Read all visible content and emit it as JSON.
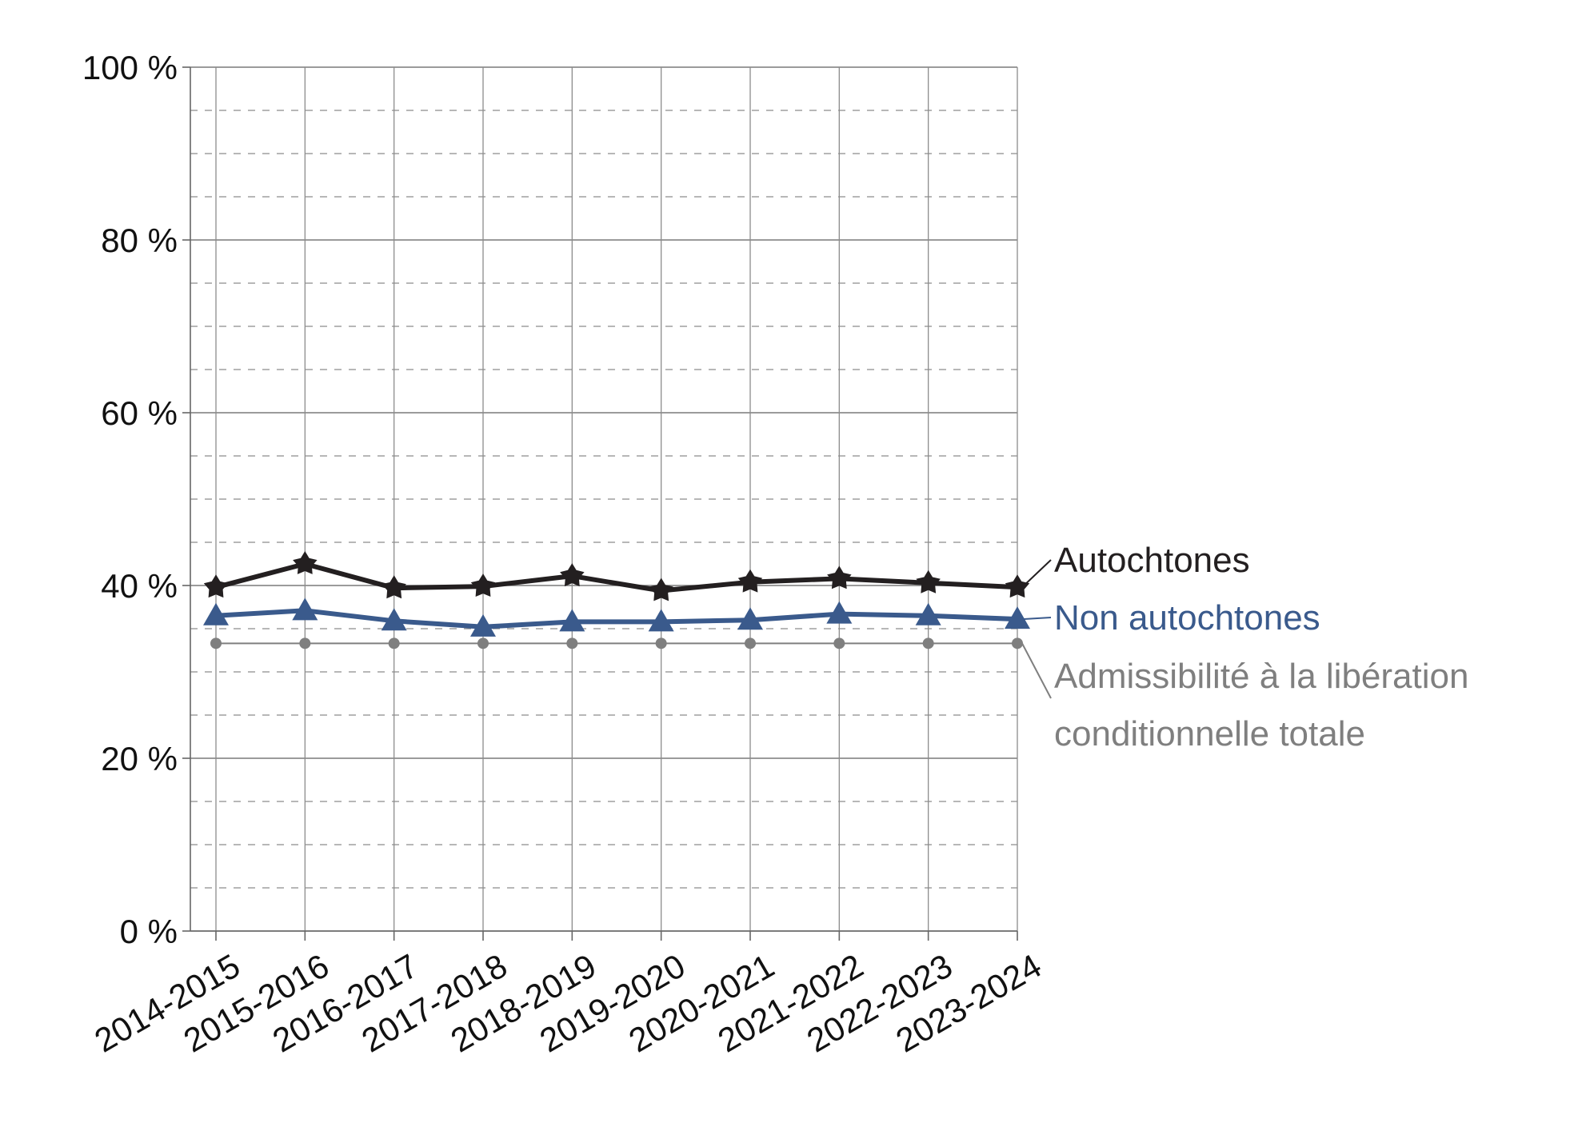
{
  "chart_data": {
    "type": "line",
    "title": "",
    "xlabel": "",
    "ylabel": "",
    "ylim": [
      0,
      100
    ],
    "yticks": [
      "0 %",
      "20 %",
      "40 %",
      "60 %",
      "80 %",
      "100 %"
    ],
    "ytick_values": [
      0,
      20,
      40,
      60,
      80,
      100
    ],
    "categories": [
      "2014-2015",
      "2015-2016",
      "2016-2017",
      "2017-2018",
      "2018-2019",
      "2019-2020",
      "2020-2021",
      "2021-2022",
      "2022-2023",
      "2023-2024"
    ],
    "grid": true,
    "legend": "direct labels at right end of lines",
    "series": [
      {
        "name": "Autochtones",
        "color": "#231f20",
        "marker": "star",
        "values": [
          39.8,
          42.5,
          39.7,
          39.9,
          41.1,
          39.4,
          40.4,
          40.8,
          40.3,
          39.8
        ]
      },
      {
        "name": "Non autochtones",
        "color": "#3a5a8c",
        "marker": "triangle",
        "values": [
          36.5,
          37.1,
          35.9,
          35.2,
          35.8,
          35.8,
          36.0,
          36.7,
          36.5,
          36.1
        ]
      },
      {
        "name_lines": [
          "Admissibilité à la libération",
          "conditionnelle totale"
        ],
        "color": "#7f7f7f",
        "marker": "circle",
        "values": [
          33.3,
          33.3,
          33.3,
          33.3,
          33.3,
          33.3,
          33.3,
          33.3,
          33.3,
          33.3
        ]
      }
    ]
  }
}
